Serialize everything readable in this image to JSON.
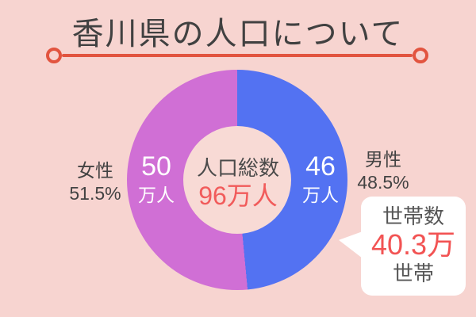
{
  "title": "香川県の人口について",
  "palette": {
    "background": "#f7d4d0",
    "donut_hole": "#f8dad5",
    "female_pink": "#d06fd5",
    "male_blue": "#5372f2",
    "accent_red_line": "#e2543f",
    "value_red": "#f15b5b",
    "text_dark": "#434343",
    "bubble_white": "#ffffff"
  },
  "chart_data": {
    "type": "pie",
    "donut": true,
    "title": "香川県の人口について",
    "categories": [
      "女性",
      "男性"
    ],
    "values": [
      51.5,
      48.5
    ],
    "value_unit": "%",
    "absolute_values": [
      50,
      46
    ],
    "absolute_unit": "万人",
    "colors": [
      "#d06fd5",
      "#5372f2"
    ],
    "start_angle_deg": 0,
    "center_label": "人口総数",
    "center_value": "96万人",
    "annotation": "世帯数 40.3万世帯",
    "legend_position": "sides"
  },
  "center": {
    "title": "人口総数",
    "value": "96万人"
  },
  "female": {
    "name": "女性",
    "percent": "51.5%",
    "value": "50",
    "unit": "万人"
  },
  "male": {
    "name": "男性",
    "percent": "48.5%",
    "value": "46",
    "unit": "万人"
  },
  "callout": {
    "title": "世帯数",
    "value": "40.3万",
    "unit": "世帯"
  }
}
